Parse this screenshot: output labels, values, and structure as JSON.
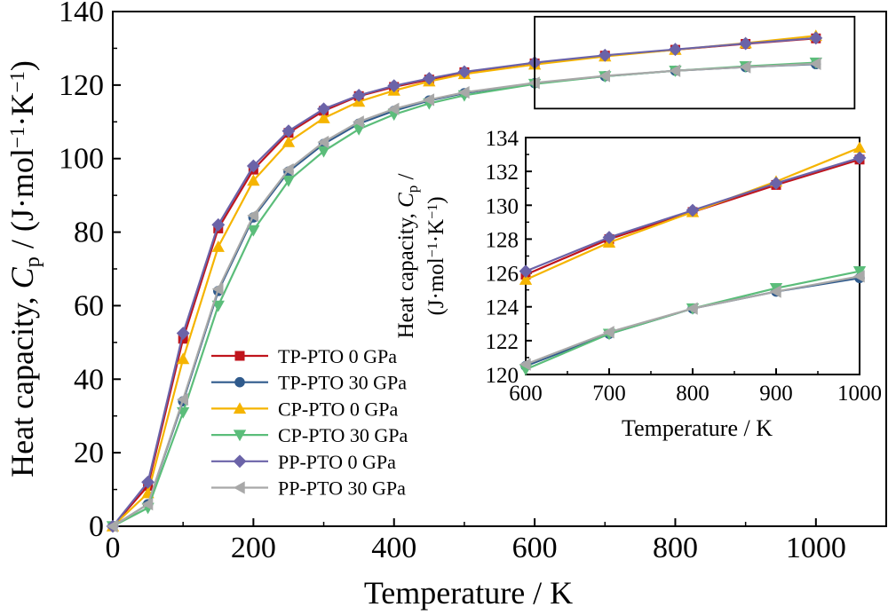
{
  "chart_data": [
    {
      "type": "line",
      "name": "main",
      "xlabel": "Temperature / K",
      "ylabel_parts": [
        "Heat capacity, ",
        "C",
        "p",
        " / (J·mol",
        "−1",
        "·K",
        "−1",
        ")"
      ],
      "xlim": [
        0,
        1100
      ],
      "ylim": [
        0,
        140
      ],
      "xticks": [
        0,
        200,
        400,
        600,
        800,
        1000
      ],
      "yticks": [
        0,
        20,
        40,
        60,
        80,
        100,
        120,
        140
      ],
      "x": [
        0,
        50,
        100,
        150,
        200,
        250,
        300,
        350,
        400,
        450,
        500,
        600,
        700,
        800,
        900,
        1000
      ],
      "series": [
        {
          "name": "TP-PTO 0 GPa",
          "color": "#c0141c",
          "marker": "square",
          "values": [
            0,
            11,
            51,
            81,
            97,
            107,
            113,
            117,
            119.5,
            121.5,
            123.5,
            125.9,
            128,
            129.6,
            131.2,
            132.7
          ]
        },
        {
          "name": "TP-PTO 30 GPa",
          "color": "#2f5a8c",
          "marker": "circle",
          "values": [
            0,
            6,
            34,
            64,
            84,
            96.5,
            104,
            109.5,
            113,
            115.8,
            117.8,
            120.5,
            122.4,
            123.9,
            124.9,
            125.7
          ]
        },
        {
          "name": "CP-PTO 0 GPa",
          "color": "#f5b400",
          "marker": "triangle-up",
          "values": [
            0,
            9,
            45.5,
            76,
            94,
            104.5,
            111,
            115.5,
            118.5,
            121,
            123,
            125.6,
            127.8,
            129.6,
            131.4,
            133.4
          ]
        },
        {
          "name": "CP-PTO 30 GPa",
          "color": "#5bbd7a",
          "marker": "triangle-down",
          "values": [
            0,
            5,
            31,
            60,
            80.5,
            94,
            102,
            108,
            112,
            115,
            117.2,
            120.3,
            122.4,
            123.9,
            125.1,
            126.1
          ]
        },
        {
          "name": "PP-PTO 0 GPa",
          "color": "#6b63a8",
          "marker": "diamond",
          "values": [
            0,
            12,
            52.5,
            82,
            98,
            107.5,
            113.5,
            117.2,
            119.8,
            121.8,
            123.6,
            126.1,
            128.1,
            129.7,
            131.3,
            132.8
          ]
        },
        {
          "name": "PP-PTO 30 GPa",
          "color": "#a8a8a8",
          "marker": "triangle-left",
          "values": [
            0,
            6,
            34.5,
            64.5,
            84.5,
            97,
            104.5,
            110,
            113.5,
            116,
            118,
            120.6,
            122.5,
            123.9,
            124.9,
            125.8
          ]
        }
      ],
      "legend_position": "center-left",
      "grid": false
    },
    {
      "type": "line",
      "name": "inset",
      "xlabel": "Temperature / K",
      "ylabel_parts": [
        "Heat capacity, ",
        "C",
        "p",
        " /"
      ],
      "ylabel2_parts": [
        "(J·mol",
        "−1",
        "·K",
        "−1",
        ")"
      ],
      "xlim": [
        600,
        1000
      ],
      "ylim": [
        120,
        134
      ],
      "xticks": [
        600,
        700,
        800,
        900,
        1000
      ],
      "yticks": [
        120,
        122,
        124,
        126,
        128,
        130,
        132,
        134
      ],
      "x": [
        600,
        700,
        800,
        900,
        1000
      ],
      "series_refs": [
        "TP-PTO 0 GPa",
        "TP-PTO 30 GPa",
        "CP-PTO 0 GPa",
        "CP-PTO 30 GPa",
        "PP-PTO 0 GPa",
        "PP-PTO 30 GPa"
      ]
    }
  ]
}
